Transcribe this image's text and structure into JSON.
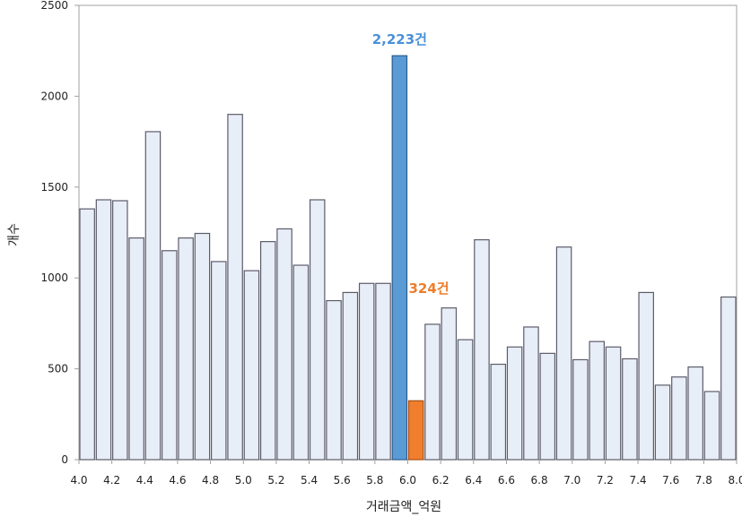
{
  "chart_data": {
    "type": "bar",
    "xlabel": "거래금액_억원",
    "ylabel": "개수",
    "xlim": [
      4.0,
      8.0
    ],
    "ylim": [
      0,
      2500
    ],
    "bin_width": 0.1,
    "grid": false,
    "x_ticks": [
      "4.0",
      "4.2",
      "4.4",
      "4.6",
      "4.8",
      "5.0",
      "5.2",
      "5.4",
      "5.6",
      "5.8",
      "6.0",
      "6.2",
      "6.4",
      "6.6",
      "6.8",
      "7.0",
      "7.2",
      "7.4",
      "7.6",
      "7.8",
      "8.0"
    ],
    "y_ticks": [
      "0",
      "500",
      "1000",
      "1500",
      "2000",
      "2500"
    ],
    "bins": [
      {
        "x": 4.0,
        "value": 1380
      },
      {
        "x": 4.1,
        "value": 1430
      },
      {
        "x": 4.2,
        "value": 1425
      },
      {
        "x": 4.3,
        "value": 1220
      },
      {
        "x": 4.4,
        "value": 1805
      },
      {
        "x": 4.5,
        "value": 1150
      },
      {
        "x": 4.6,
        "value": 1220
      },
      {
        "x": 4.7,
        "value": 1245
      },
      {
        "x": 4.8,
        "value": 1090
      },
      {
        "x": 4.9,
        "value": 1900
      },
      {
        "x": 5.0,
        "value": 1040
      },
      {
        "x": 5.1,
        "value": 1200
      },
      {
        "x": 5.2,
        "value": 1270
      },
      {
        "x": 5.3,
        "value": 1070
      },
      {
        "x": 5.4,
        "value": 1430
      },
      {
        "x": 5.5,
        "value": 875
      },
      {
        "x": 5.6,
        "value": 920
      },
      {
        "x": 5.7,
        "value": 970
      },
      {
        "x": 5.8,
        "value": 970
      },
      {
        "x": 5.9,
        "value": 2223,
        "highlight": "blue"
      },
      {
        "x": 6.0,
        "value": 324,
        "highlight": "orange"
      },
      {
        "x": 6.1,
        "value": 745
      },
      {
        "x": 6.2,
        "value": 835
      },
      {
        "x": 6.3,
        "value": 660
      },
      {
        "x": 6.4,
        "value": 1210
      },
      {
        "x": 6.5,
        "value": 525
      },
      {
        "x": 6.6,
        "value": 620
      },
      {
        "x": 6.7,
        "value": 730
      },
      {
        "x": 6.8,
        "value": 585
      },
      {
        "x": 6.9,
        "value": 1170
      },
      {
        "x": 7.0,
        "value": 550
      },
      {
        "x": 7.1,
        "value": 650
      },
      {
        "x": 7.2,
        "value": 620
      },
      {
        "x": 7.3,
        "value": 555
      },
      {
        "x": 7.4,
        "value": 920
      },
      {
        "x": 7.5,
        "value": 410
      },
      {
        "x": 7.6,
        "value": 455
      },
      {
        "x": 7.7,
        "value": 510
      },
      {
        "x": 7.8,
        "value": 375
      },
      {
        "x": 7.9,
        "value": 895
      }
    ],
    "annotations": [
      {
        "text": "2,223건",
        "bin_x": 5.9,
        "color": "#4a90d9"
      },
      {
        "text": "324건",
        "bin_x": 6.0,
        "color": "#ee7d2b"
      }
    ]
  },
  "colors": {
    "bar_fill": "#e8eef8",
    "bar_stroke": "#5c5c6a",
    "highlight_blue": "#5a9bd5",
    "highlight_blue_stroke": "#2d5c8a",
    "highlight_orange": "#f07e2d",
    "highlight_orange_stroke": "#a94f12",
    "frame": "#a0a0a0"
  }
}
